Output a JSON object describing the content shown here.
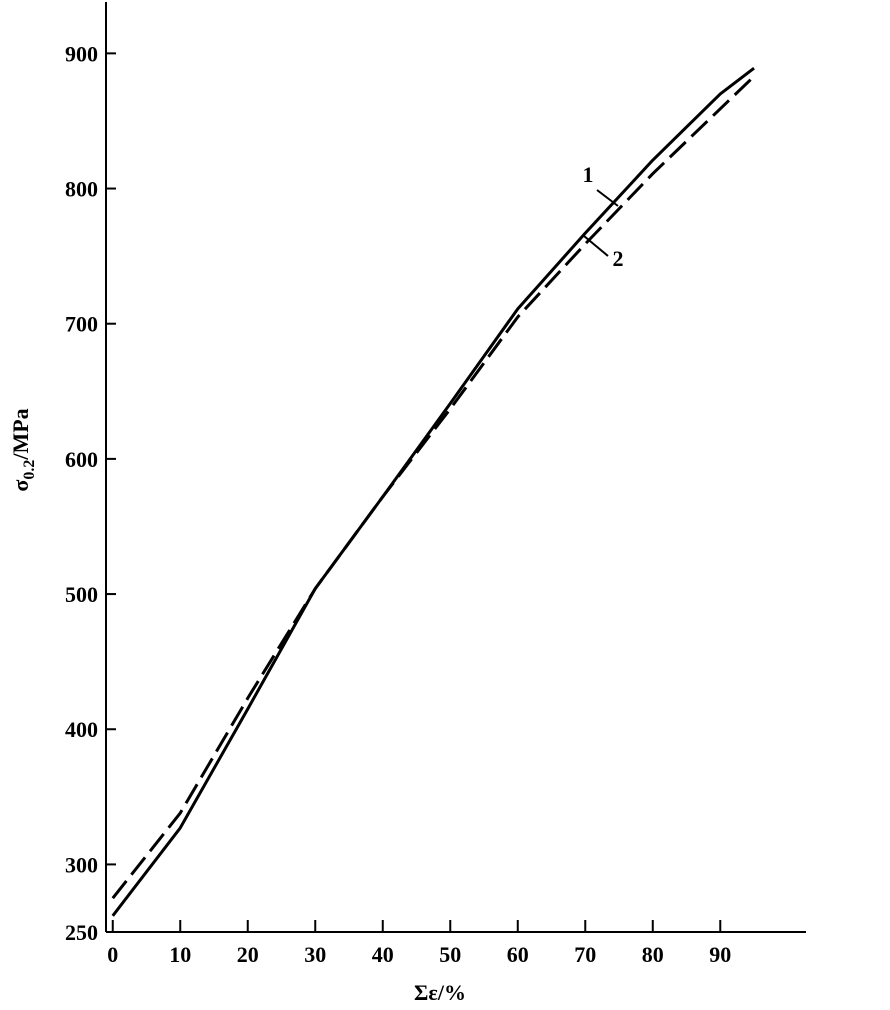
{
  "chart_data": {
    "type": "line",
    "x_label": "Σε/%",
    "y_label": {
      "symbol": "σ",
      "subscript": "0.2",
      "unit": "/MPa"
    },
    "x": [
      0,
      10,
      20,
      30,
      40,
      50,
      60,
      70,
      80,
      90,
      95
    ],
    "series": [
      {
        "name": "1",
        "color": "#000000",
        "line_style": "solid",
        "values": [
          262,
          327,
          415,
          504,
          572,
          641,
          711,
          767,
          821,
          870,
          889
        ]
      },
      {
        "name": "2",
        "color": "#000000",
        "line_style": "dashed",
        "values": [
          275,
          338,
          423,
          504,
          572,
          637,
          705,
          759,
          811,
          859,
          883
        ]
      }
    ],
    "xlim": [
      -1,
      102.7
    ],
    "ylim": [
      250,
      938
    ],
    "xticks": [
      0,
      10,
      20,
      30,
      40,
      50,
      60,
      70,
      80,
      90
    ],
    "yticks": [
      250,
      300,
      400,
      500,
      600,
      700,
      800,
      900
    ],
    "grid": false
  }
}
